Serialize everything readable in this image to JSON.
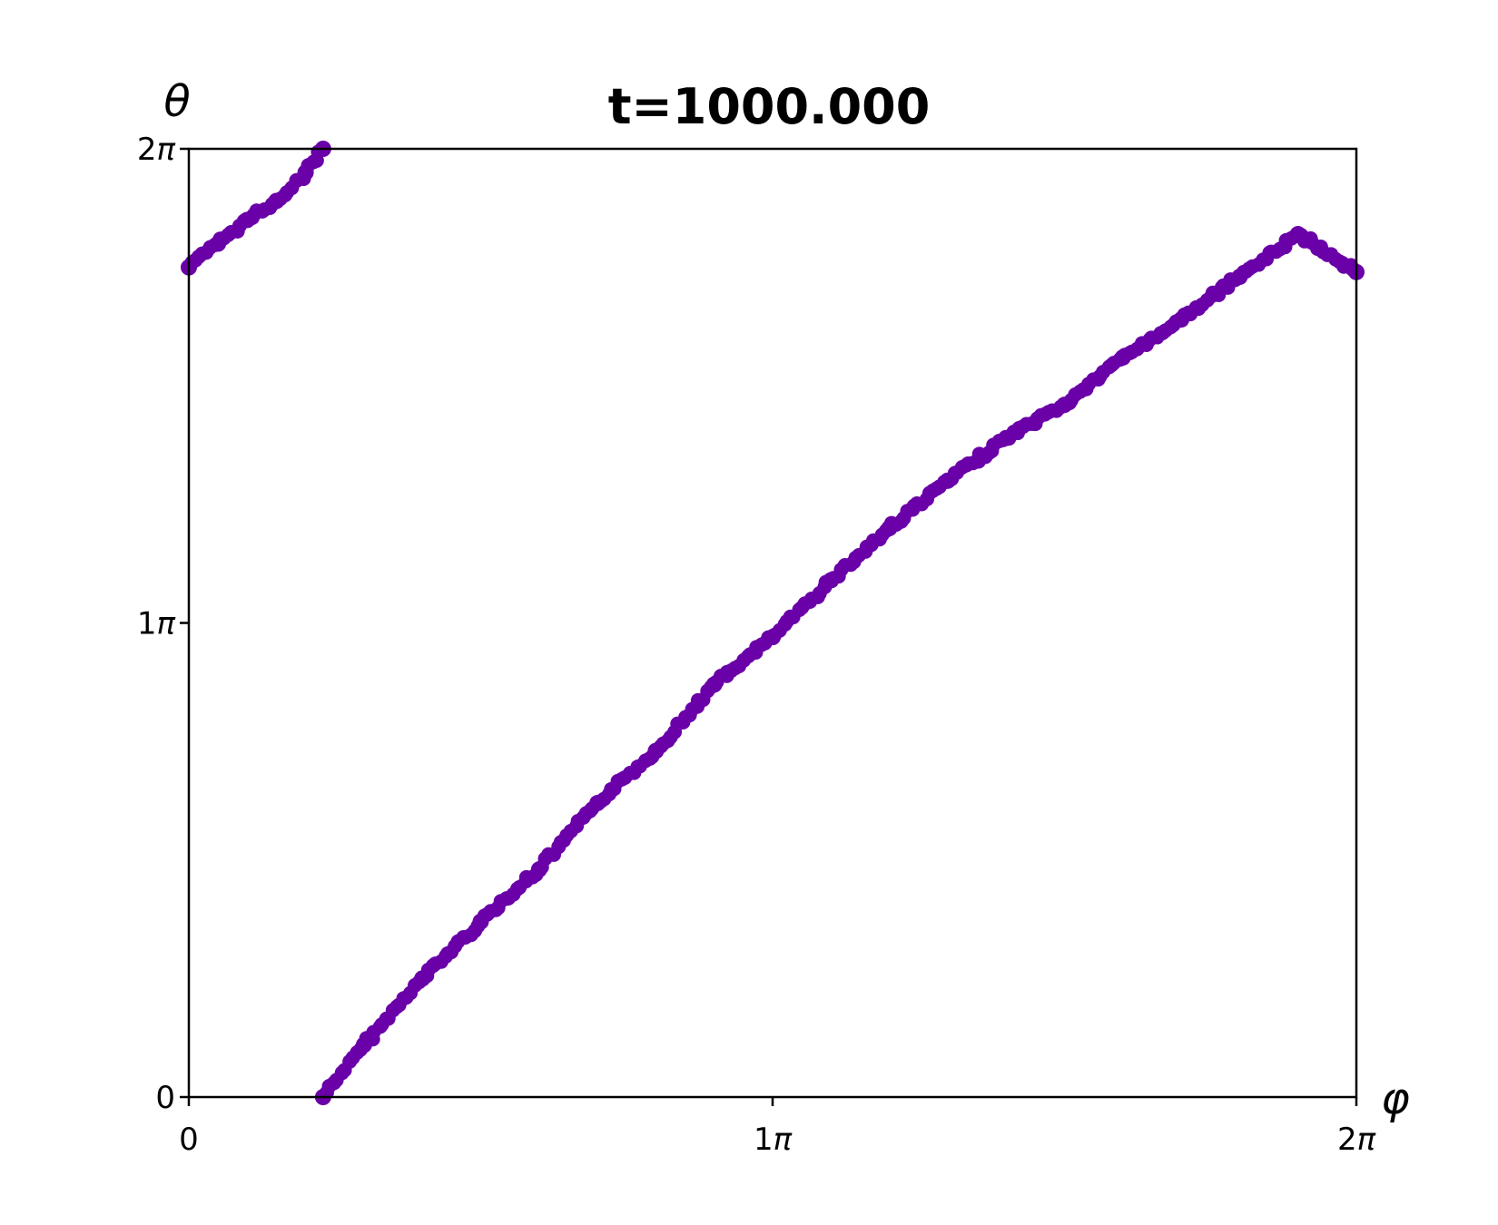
{
  "chart_data": {
    "type": "scatter",
    "title": "t=1000.000",
    "xlabel": "φ",
    "ylabel": "θ",
    "xlim": [
      0,
      2
    ],
    "ylim": [
      0,
      2
    ],
    "axis_unit": "π",
    "x_ticks": [
      {
        "value": 0,
        "label": "0"
      },
      {
        "value": 1,
        "label": "1π"
      },
      {
        "value": 2,
        "label": "2π"
      }
    ],
    "y_ticks": [
      {
        "value": 0,
        "label": "0"
      },
      {
        "value": 1,
        "label": "1π"
      },
      {
        "value": 2,
        "label": "2π"
      }
    ],
    "grid": false,
    "legend": "none",
    "marker_color": "#6a00a8",
    "series": [
      {
        "values_description_units": "x = φ/π, y = θ/π",
        "x": [
          0.23,
          0.3,
          0.4,
          0.5,
          0.6,
          0.7,
          0.8,
          0.9,
          1.0,
          1.1,
          1.2,
          1.3,
          1.4,
          1.5,
          1.6,
          1.7,
          1.8,
          1.9,
          2.0
        ],
        "y": [
          0.0,
          0.11,
          0.25,
          0.37,
          0.48,
          0.62,
          0.73,
          0.87,
          0.97,
          1.09,
          1.2,
          1.3,
          1.39,
          1.46,
          1.56,
          1.64,
          1.73,
          1.82,
          1.74
        ]
      },
      {
        "x": [
          0.0,
          0.05,
          0.1,
          0.15,
          0.2,
          0.23
        ],
        "y": [
          1.75,
          1.8,
          1.85,
          1.89,
          1.95,
          2.0
        ]
      }
    ]
  }
}
